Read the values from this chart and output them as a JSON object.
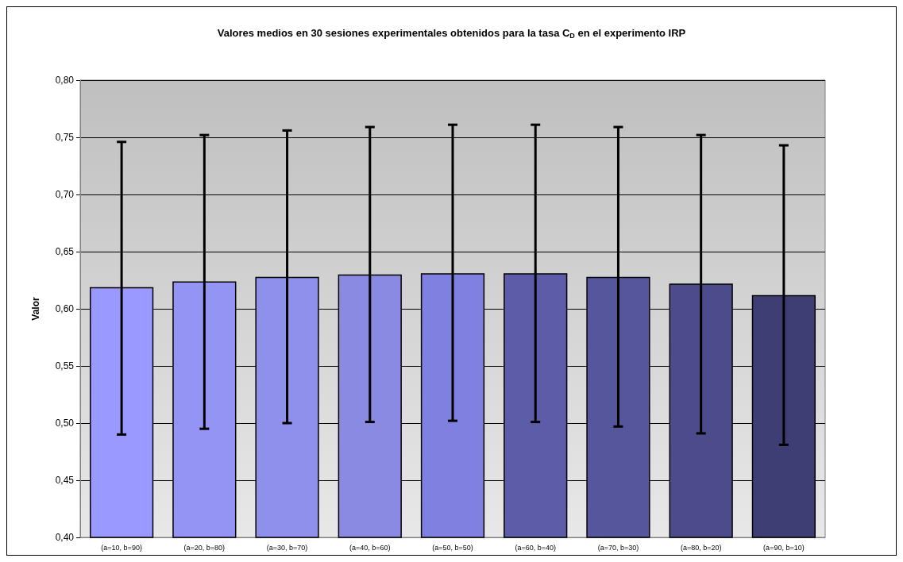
{
  "chart_data": {
    "type": "bar",
    "title": "Valores medios en 30 sesiones experimentales obtenidos para la tasa C$_{D}$ en el experimento IRP",
    "ylabel": "Valor",
    "categories": [
      "(a=10, b=90)",
      "(a=20, b=80)",
      "(a=30, b=70)",
      "(a=40, b=60)",
      "(a=50, b=50)",
      "(a=60, b=40)",
      "(a=70, b=30)",
      "(a=80, b=20)",
      "(a=90, b=10)"
    ],
    "values": [
      0.619,
      0.624,
      0.628,
      0.63,
      0.631,
      0.631,
      0.628,
      0.622,
      0.612
    ],
    "errors": [
      [
        0.49,
        0.746
      ],
      [
        0.495,
        0.752
      ],
      [
        0.5,
        0.756
      ],
      [
        0.501,
        0.759
      ],
      [
        0.502,
        0.761
      ],
      [
        0.501,
        0.761
      ],
      [
        0.497,
        0.759
      ],
      [
        0.491,
        0.752
      ],
      [
        0.481,
        0.743
      ]
    ],
    "colors": [
      "#9999ff",
      "#9494f5",
      "#8f8fec",
      "#8a8ae3",
      "#8080e0",
      "#5c5ca8",
      "#56569c",
      "#4c4c8c",
      "#3e3e74"
    ],
    "ylim": [
      0.4,
      0.8
    ],
    "yticks": [
      {
        "value": 0.4,
        "label": "0,40"
      },
      {
        "value": 0.45,
        "label": "0,45"
      },
      {
        "value": 0.5,
        "label": "0,50"
      },
      {
        "value": 0.55,
        "label": "0,55"
      },
      {
        "value": 0.6,
        "label": "0,60"
      },
      {
        "value": 0.65,
        "label": "0,65"
      },
      {
        "value": 0.7,
        "label": "0,70"
      },
      {
        "value": 0.75,
        "label": "0,75"
      },
      {
        "value": 0.8,
        "label": "0,80"
      }
    ],
    "grid": "y"
  }
}
